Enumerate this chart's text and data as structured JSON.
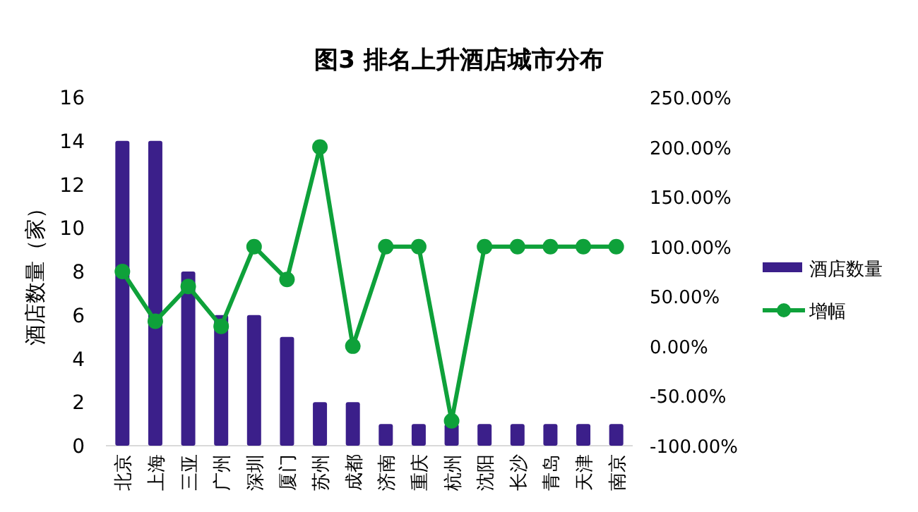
{
  "chart_data": {
    "type": "bar",
    "title": "图3 排名上升酒店城市分布",
    "ylabel": "酒店数量（家）",
    "categories": [
      "北京",
      "上海",
      "三亚",
      "广州",
      "深圳",
      "厦门",
      "苏州",
      "成都",
      "济南",
      "重庆",
      "杭州",
      "沈阳",
      "长沙",
      "青岛",
      "天津",
      "南京"
    ],
    "series": [
      {
        "name": "酒店数量",
        "color": "#3b1f8a",
        "values": [
          14,
          14,
          8,
          6,
          6,
          5,
          2,
          2,
          1,
          1,
          1,
          1,
          1,
          1,
          1,
          1
        ]
      },
      {
        "name": "增幅",
        "type": "line",
        "axis": "y2",
        "color": "#0ea13a",
        "marker": "circle",
        "values": [
          75,
          25,
          60,
          20,
          100,
          67,
          200,
          0,
          100,
          100,
          -75,
          100,
          100,
          100,
          100,
          100
        ]
      }
    ],
    "ylim": [
      0,
      16
    ],
    "yticks": [
      0,
      2,
      4,
      6,
      8,
      10,
      12,
      14,
      16
    ],
    "y2lim": [
      -100,
      250
    ],
    "y2ticks": [
      {
        "value": -100,
        "label": "-100.00%"
      },
      {
        "value": -50,
        "label": "-50.00%"
      },
      {
        "value": 0,
        "label": "0.00%"
      },
      {
        "value": 50,
        "label": "50.00%"
      },
      {
        "value": 100,
        "label": "100.00%"
      },
      {
        "value": 150,
        "label": "150.00%"
      },
      {
        "value": 200,
        "label": "200.00%"
      },
      {
        "value": 250,
        "label": "250.00%"
      }
    ],
    "grid": false,
    "legend": "right"
  }
}
